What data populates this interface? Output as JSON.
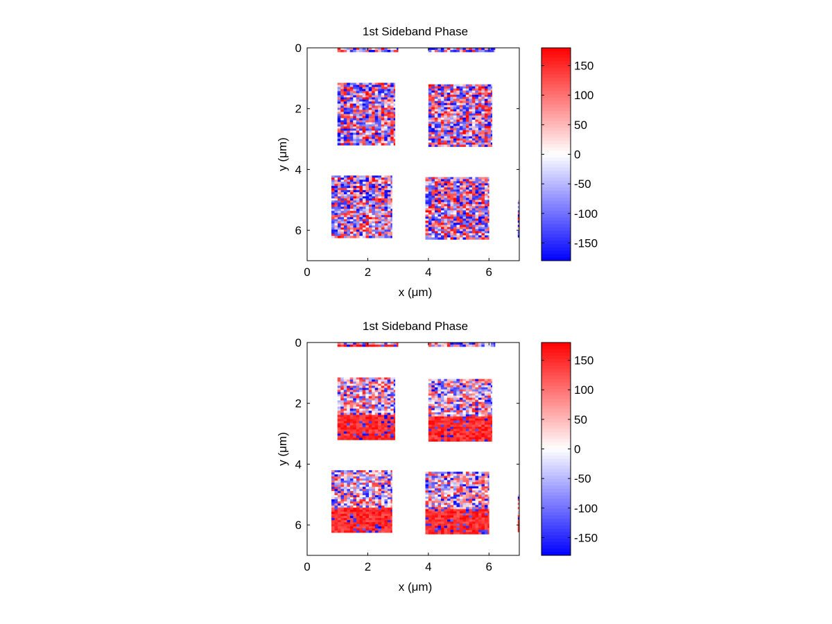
{
  "chart_data": [
    {
      "type": "heatmap",
      "title": "1st Sideband Phase",
      "xlabel": "x (μm)",
      "ylabel": "y (μm)",
      "xlim": [
        0,
        7
      ],
      "ylim": [
        0,
        7
      ],
      "y_reversed": true,
      "xticks": [
        0,
        2,
        4,
        6
      ],
      "yticks": [
        0,
        2,
        4,
        6
      ],
      "colorbar": {
        "range": [
          -180,
          180
        ],
        "ticks": [
          150,
          100,
          50,
          0,
          -50,
          -100,
          -150
        ],
        "low_color": "#0000ff",
        "mid_color": "#ffffff",
        "high_color": "#ff0000"
      },
      "pattern": "uniform",
      "regions": [
        {
          "x": [
            1.0,
            2.9
          ],
          "y": [
            1.15,
            3.15
          ]
        },
        {
          "x": [
            4.0,
            6.1
          ],
          "y": [
            1.2,
            3.2
          ]
        },
        {
          "x": [
            0.8,
            2.8
          ],
          "y": [
            4.2,
            6.2
          ]
        },
        {
          "x": [
            3.9,
            6.0
          ],
          "y": [
            4.25,
            6.25
          ]
        },
        {
          "x": [
            1.0,
            3.0
          ],
          "y": [
            0.0,
            0.07
          ]
        },
        {
          "x": [
            4.0,
            6.2
          ],
          "y": [
            0.0,
            0.12
          ]
        },
        {
          "x": [
            6.95,
            7.0
          ],
          "y": [
            5.0,
            6.2
          ]
        }
      ]
    },
    {
      "type": "heatmap",
      "title": "1st Sideband Phase",
      "xlabel": "x (μm)",
      "ylabel": "y (μm)",
      "xlim": [
        0,
        7
      ],
      "ylim": [
        0,
        7
      ],
      "y_reversed": true,
      "xticks": [
        0,
        2,
        4,
        6
      ],
      "yticks": [
        0,
        2,
        4,
        6
      ],
      "colorbar": {
        "range": [
          -180,
          180
        ],
        "ticks": [
          150,
          100,
          50,
          0,
          -50,
          -100,
          -150
        ],
        "low_color": "#0000ff",
        "mid_color": "#ffffff",
        "high_color": "#ff0000"
      },
      "pattern": "red-bottom-gradient",
      "regions": [
        {
          "x": [
            1.0,
            2.9
          ],
          "y": [
            1.15,
            3.15
          ]
        },
        {
          "x": [
            4.0,
            6.1
          ],
          "y": [
            1.2,
            3.2
          ]
        },
        {
          "x": [
            0.8,
            2.8
          ],
          "y": [
            4.2,
            6.2
          ]
        },
        {
          "x": [
            3.9,
            6.0
          ],
          "y": [
            4.25,
            6.25
          ]
        },
        {
          "x": [
            1.0,
            3.0
          ],
          "y": [
            0.0,
            0.07
          ]
        },
        {
          "x": [
            4.0,
            6.2
          ],
          "y": [
            0.0,
            0.12
          ]
        },
        {
          "x": [
            6.95,
            7.0
          ],
          "y": [
            5.0,
            6.2
          ]
        }
      ]
    }
  ]
}
